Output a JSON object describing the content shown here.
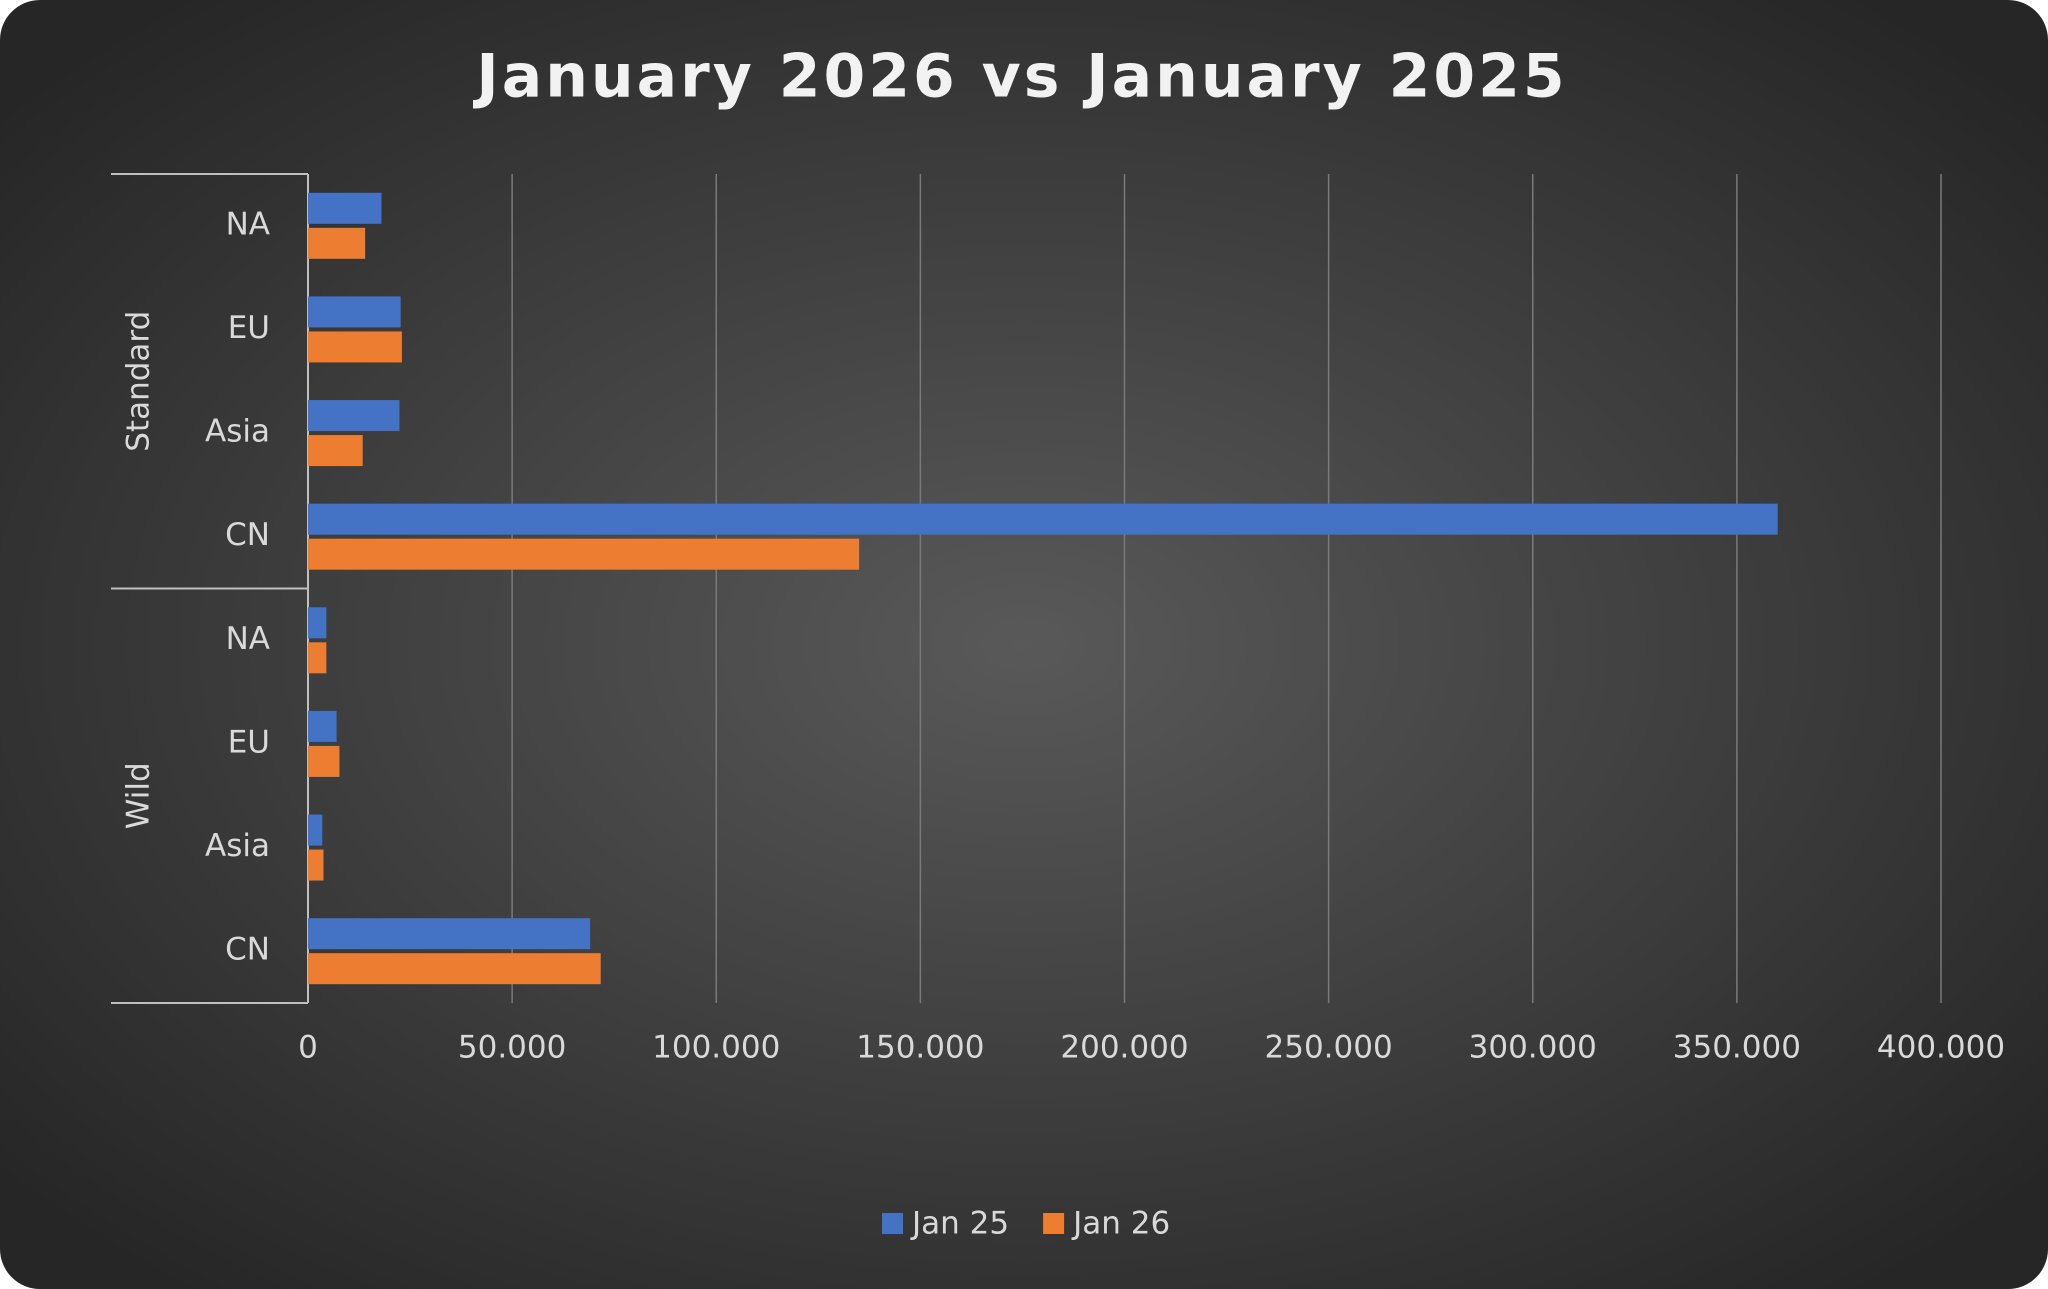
{
  "chart_data": {
    "type": "bar",
    "orientation": "horizontal",
    "title": "January 2026 vs January 2025",
    "groups": [
      {
        "label": "Standard",
        "categories": [
          "NA",
          "EU",
          "Asia",
          "CN"
        ]
      },
      {
        "label": "Wild",
        "categories": [
          "NA",
          "EU",
          "Asia",
          "CN"
        ]
      }
    ],
    "series": [
      {
        "name": "Jan 25",
        "color": "#4472c4",
        "values": [
          18000,
          22700,
          22400,
          360000,
          4500,
          7000,
          3500,
          69100
        ]
      },
      {
        "name": "Jan 26",
        "color": "#ed7d31",
        "values": [
          14000,
          23000,
          13400,
          135000,
          4500,
          7700,
          3800,
          71700
        ]
      }
    ],
    "xlim": [
      0,
      400000
    ],
    "xticks": [
      0,
      {
        "value": 50000,
        "label": "50.000"
      },
      {
        "value": 100000,
        "label": "100.000"
      },
      {
        "value": 150000,
        "label": "150.000"
      },
      {
        "value": 200000,
        "label": "200.000"
      },
      {
        "value": 250000,
        "label": "250.000"
      },
      {
        "value": 300000,
        "label": "300.000"
      },
      {
        "value": 350000,
        "label": "350.000"
      },
      {
        "value": 400000,
        "label": "400.000"
      }
    ],
    "grid": true,
    "legend": "bottom"
  }
}
